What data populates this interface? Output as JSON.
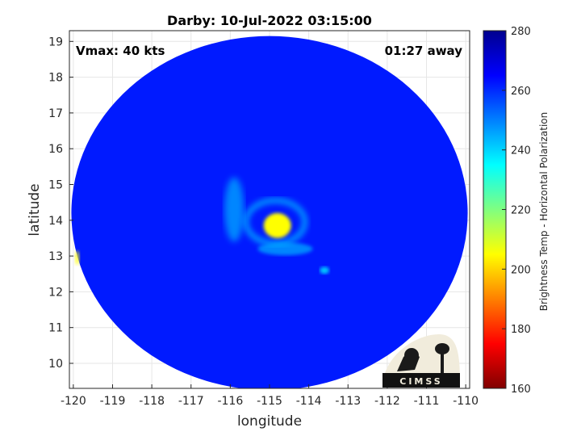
{
  "chart_data": {
    "type": "heatmap",
    "title": "Darby: 10-Jul-2022 03:15:00",
    "xlabel": "longitude",
    "ylabel": "latitude",
    "xlim": [
      -120.1,
      -109.9
    ],
    "ylim": [
      9.3,
      19.3
    ],
    "xticks": [
      -120,
      -119,
      -118,
      -117,
      -116,
      -115,
      -114,
      -113,
      -112,
      -111,
      -110
    ],
    "yticks": [
      10,
      11,
      12,
      13,
      14,
      15,
      16,
      17,
      18,
      19
    ],
    "grid": true,
    "swath": {
      "center_lon": -115.0,
      "center_lat": 14.2,
      "radius_lon": 5.05,
      "radius_lat": 4.95
    },
    "background_tb": 262,
    "features": [
      {
        "name": "eye",
        "lon": -114.8,
        "lat": 13.85,
        "tb": 205
      },
      {
        "name": "inner-ring",
        "lon": -114.85,
        "lat": 13.95,
        "tb": 235
      },
      {
        "name": "spiral-band-west",
        "lon": -115.9,
        "lat": 14.3,
        "tb": 245
      },
      {
        "name": "spiral-band-south",
        "lon": -114.6,
        "lat": 13.2,
        "tb": 245
      },
      {
        "name": "convection-east",
        "lon": -113.6,
        "lat": 12.6,
        "tb": 235
      },
      {
        "name": "edge-warm-west",
        "lon": -119.9,
        "lat": 12.95,
        "tb": 205
      }
    ],
    "annotations": {
      "vmax": "Vmax: 40 kts",
      "time_away": "01:27 away"
    },
    "colorbar": {
      "label": "Brightness Temp - Horizontal Polarization",
      "min": 160,
      "max": 280,
      "ticks": [
        160,
        180,
        200,
        220,
        240,
        260,
        280
      ],
      "colormap": "jet"
    }
  },
  "logo": {
    "text": "CIMSS"
  }
}
